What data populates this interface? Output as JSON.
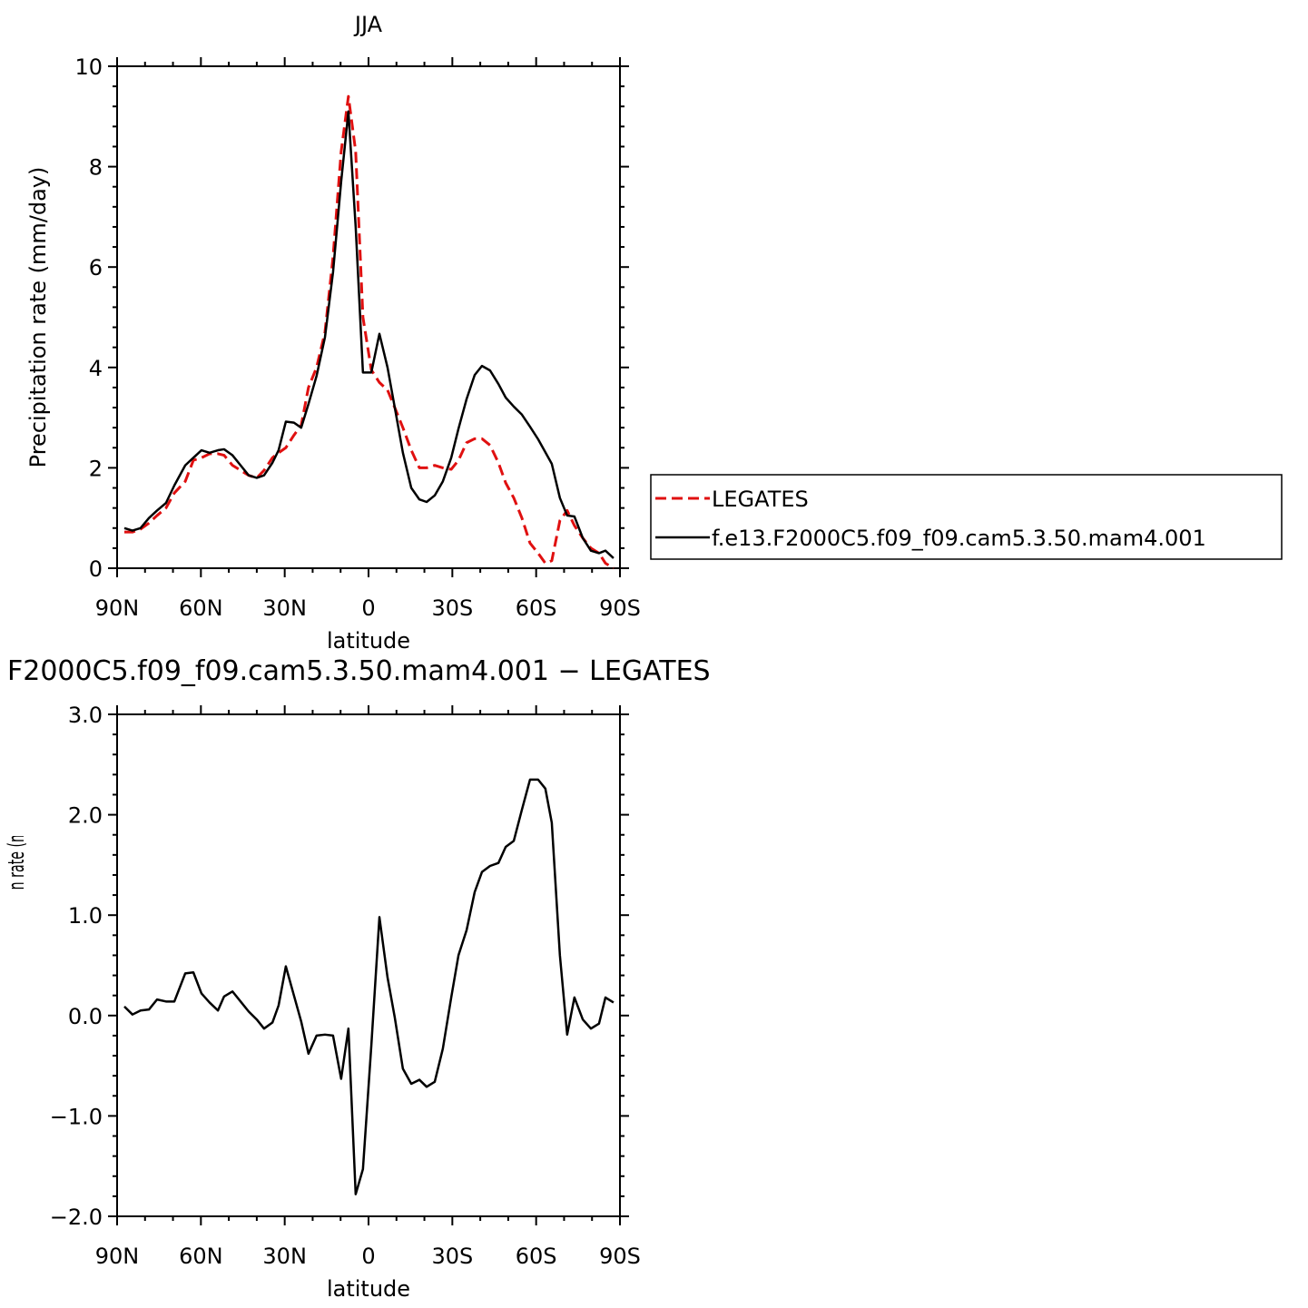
{
  "chart_data": [
    {
      "type": "line",
      "title": "JJA",
      "xlabel": "latitude",
      "ylabel": "Precipitation rate (mm/day)",
      "x": [
        87.4,
        84.5,
        81.6,
        78.6,
        75.7,
        72.5,
        69.5,
        65.6,
        62.7,
        59.8,
        56.9,
        53.9,
        51.7,
        48.7,
        45.8,
        42.9,
        40.0,
        37.4,
        34.4,
        32.2,
        29.6,
        26.7,
        24.1,
        21.5,
        18.6,
        15.6,
        12.7,
        9.8,
        7.2,
        4.6,
        2.0,
        -1.0,
        -3.9,
        -6.8,
        -9.4,
        -12.3,
        -15.3,
        -18.2,
        -20.8,
        -23.7,
        -26.6,
        -29.6,
        -32.2,
        -35.1,
        -38.0,
        -40.6,
        -43.5,
        -46.5,
        -49.1,
        -52.0,
        -54.9,
        -57.8,
        -60.7,
        -63.3,
        -65.6,
        -68.5,
        -71.1,
        -73.7,
        -76.7,
        -79.6,
        -82.5,
        -84.8,
        -87.7
      ],
      "series": [
        {
          "name": "LEGATES",
          "color": "#e01010",
          "linestyle": "dashed",
          "values": [
            0.72,
            0.72,
            0.78,
            0.9,
            1.05,
            1.2,
            1.5,
            1.73,
            2.15,
            2.2,
            2.28,
            2.28,
            2.25,
            2.05,
            1.95,
            1.85,
            1.8,
            1.95,
            2.2,
            2.3,
            2.4,
            2.65,
            2.85,
            3.6,
            4.0,
            4.7,
            6.2,
            8.3,
            9.4,
            8.3,
            5.0,
            3.95,
            3.7,
            3.55,
            3.2,
            2.8,
            2.35,
            2.0,
            2.0,
            2.05,
            2.0,
            1.97,
            2.15,
            2.5,
            2.58,
            2.58,
            2.45,
            2.1,
            1.7,
            1.4,
            1.0,
            0.5,
            0.3,
            0.1,
            0.15,
            0.95,
            1.15,
            0.85,
            0.6,
            0.4,
            0.3,
            0.1,
            0.0
          ]
        },
        {
          "name": "f.e13.F2000C5.f09_f09.cam5.3.50.mam4.001",
          "color": "#000000",
          "linestyle": "solid",
          "values": [
            0.8,
            0.75,
            0.8,
            1.0,
            1.15,
            1.3,
            1.65,
            2.05,
            2.2,
            2.35,
            2.3,
            2.35,
            2.37,
            2.25,
            2.05,
            1.85,
            1.8,
            1.85,
            2.1,
            2.35,
            2.92,
            2.9,
            2.8,
            3.27,
            3.83,
            4.6,
            5.9,
            7.7,
            9.1,
            6.8,
            3.9,
            3.9,
            4.67,
            4.0,
            3.2,
            2.3,
            1.6,
            1.37,
            1.32,
            1.45,
            1.73,
            2.2,
            2.78,
            3.37,
            3.85,
            4.03,
            3.94,
            3.67,
            3.4,
            3.22,
            3.06,
            2.82,
            2.57,
            2.31,
            2.08,
            1.4,
            1.05,
            1.03,
            0.6,
            0.35,
            0.3,
            0.35,
            0.2
          ]
        }
      ],
      "xlim": [
        90,
        -90
      ],
      "xticks": [
        {
          "value": 90,
          "label": "90N"
        },
        {
          "value": 60,
          "label": "60N"
        },
        {
          "value": 30,
          "label": "30N"
        },
        0,
        {
          "value": -30,
          "label": "30S"
        },
        {
          "value": -60,
          "label": "60S"
        },
        {
          "value": -90,
          "label": "90S"
        }
      ],
      "xminorticks": [
        80,
        70,
        50,
        40,
        20,
        10,
        -10,
        -20,
        -40,
        -50,
        -70,
        -80
      ],
      "ylim": [
        0,
        10
      ],
      "yticks": [
        0,
        2,
        4,
        6,
        8,
        10
      ],
      "yminorticks": [
        0.4,
        0.8,
        1.2,
        1.6,
        2.4,
        2.8,
        3.2,
        3.6,
        4.4,
        4.8,
        5.2,
        5.6,
        6.4,
        6.8,
        7.2,
        7.6,
        8.4,
        8.8,
        9.2,
        9.6
      ],
      "legend": "right"
    },
    {
      "type": "line",
      "title": "F2000C5.f09_f09.cam5.3.50.mam4.001 − LEGATES",
      "xlabel": "latitude",
      "ylabel": "Precipitation rate (mm/day)",
      "x": [
        87.4,
        84.5,
        81.6,
        78.6,
        75.7,
        72.5,
        69.5,
        65.6,
        62.7,
        59.8,
        56.9,
        53.9,
        51.7,
        48.7,
        45.8,
        42.9,
        40.0,
        37.4,
        34.4,
        32.2,
        29.6,
        26.7,
        24.1,
        21.5,
        18.6,
        15.6,
        12.7,
        9.8,
        7.2,
        4.6,
        2.0,
        -1.0,
        -3.9,
        -6.8,
        -9.4,
        -12.3,
        -15.3,
        -18.2,
        -20.8,
        -23.7,
        -26.6,
        -29.6,
        -32.2,
        -35.1,
        -38.0,
        -40.6,
        -43.5,
        -46.5,
        -49.1,
        -52.0,
        -54.9,
        -57.8,
        -60.7,
        -63.3,
        -65.6,
        -68.5,
        -71.1,
        -73.7,
        -76.7,
        -79.6,
        -82.5,
        -84.8,
        -87.7
      ],
      "values": [
        0.09,
        0.01,
        0.05,
        0.06,
        0.16,
        0.14,
        0.14,
        0.42,
        0.43,
        0.22,
        0.13,
        0.05,
        0.19,
        0.24,
        0.14,
        0.04,
        -0.04,
        -0.13,
        -0.07,
        0.1,
        0.49,
        0.2,
        -0.06,
        -0.38,
        -0.2,
        -0.19,
        -0.2,
        -0.63,
        -0.13,
        -1.78,
        -1.53,
        -0.3,
        0.98,
        0.38,
        -0.02,
        -0.53,
        -0.68,
        -0.64,
        -0.71,
        -0.66,
        -0.33,
        0.18,
        0.6,
        0.85,
        1.23,
        1.43,
        1.49,
        1.52,
        1.68,
        1.74,
        2.05,
        2.35,
        2.35,
        2.26,
        1.92,
        0.6,
        -0.19,
        0.18,
        -0.04,
        -0.13,
        -0.08,
        0.18,
        0.13
      ],
      "color": "#000000",
      "xlim": [
        90,
        -90
      ],
      "xticks": [
        {
          "value": 90,
          "label": "90N"
        },
        {
          "value": 60,
          "label": "60N"
        },
        {
          "value": 30,
          "label": "30N"
        },
        0,
        {
          "value": -30,
          "label": "30S"
        },
        {
          "value": -60,
          "label": "60S"
        },
        {
          "value": -90,
          "label": "90S"
        }
      ],
      "xminorticks": [
        80,
        70,
        50,
        40,
        20,
        10,
        -10,
        -20,
        -40,
        -50,
        -70,
        -80
      ],
      "ylim": [
        -2,
        3
      ],
      "yticks": [
        {
          "value": 3,
          "label": "3.0"
        },
        {
          "value": 2,
          "label": "2.0"
        },
        {
          "value": 1,
          "label": "1.0"
        },
        {
          "value": 0,
          "label": "0.0"
        },
        {
          "value": -1,
          "label": "−1.0"
        },
        {
          "value": -2,
          "label": "−2.0"
        }
      ],
      "yminorticks": [
        2.8,
        2.6,
        2.4,
        2.2,
        1.8,
        1.6,
        1.4,
        1.2,
        0.8,
        0.6,
        0.4,
        0.2,
        -0.2,
        -0.4,
        -0.6,
        -0.8,
        -1.2,
        -1.4,
        -1.6,
        -1.8
      ]
    }
  ]
}
